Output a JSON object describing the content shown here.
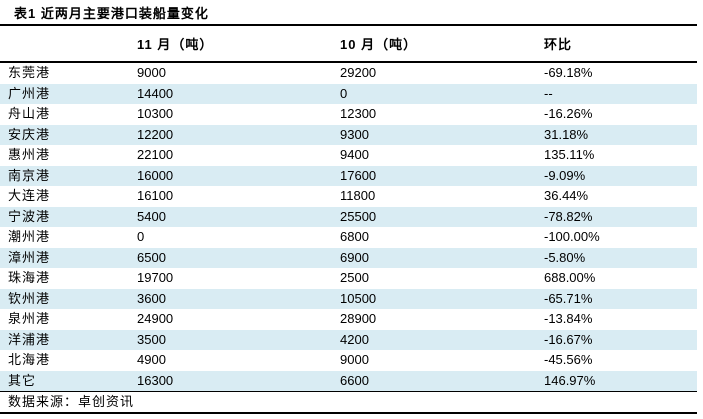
{
  "title": "表1 近两月主要港口装船量变化",
  "columns": {
    "port": "",
    "nov": "11 月（吨）",
    "oct": "10 月（吨）",
    "mom": "环比"
  },
  "rows": [
    {
      "port": "东莞港",
      "nov": "9000",
      "oct": "29200",
      "mom": "-69.18%"
    },
    {
      "port": "广州港",
      "nov": "14400",
      "oct": "0",
      "mom": "--"
    },
    {
      "port": "舟山港",
      "nov": "10300",
      "oct": "12300",
      "mom": "-16.26%"
    },
    {
      "port": "安庆港",
      "nov": "12200",
      "oct": "9300",
      "mom": "31.18%"
    },
    {
      "port": "惠州港",
      "nov": "22100",
      "oct": "9400",
      "mom": "135.11%"
    },
    {
      "port": "南京港",
      "nov": "16000",
      "oct": "17600",
      "mom": "-9.09%"
    },
    {
      "port": "大连港",
      "nov": "16100",
      "oct": "11800",
      "mom": "36.44%"
    },
    {
      "port": "宁波港",
      "nov": "5400",
      "oct": "25500",
      "mom": "-78.82%"
    },
    {
      "port": "潮州港",
      "nov": "0",
      "oct": "6800",
      "mom": "-100.00%"
    },
    {
      "port": "漳州港",
      "nov": "6500",
      "oct": "6900",
      "mom": "-5.80%"
    },
    {
      "port": "珠海港",
      "nov": "19700",
      "oct": "2500",
      "mom": "688.00%"
    },
    {
      "port": "钦州港",
      "nov": "3600",
      "oct": "10500",
      "mom": "-65.71%"
    },
    {
      "port": "泉州港",
      "nov": "24900",
      "oct": "28900",
      "mom": "-13.84%"
    },
    {
      "port": "洋浦港",
      "nov": "3500",
      "oct": "4200",
      "mom": "-16.67%"
    },
    {
      "port": "北海港",
      "nov": "4900",
      "oct": "9000",
      "mom": "-45.56%"
    },
    {
      "port": "其它",
      "nov": "16300",
      "oct": "6600",
      "mom": "146.97%"
    }
  ],
  "source": "数据来源：卓创资讯",
  "colors": {
    "stripe": "#d9ecf3",
    "border": "#000000",
    "text": "#000000",
    "background": "#ffffff"
  }
}
